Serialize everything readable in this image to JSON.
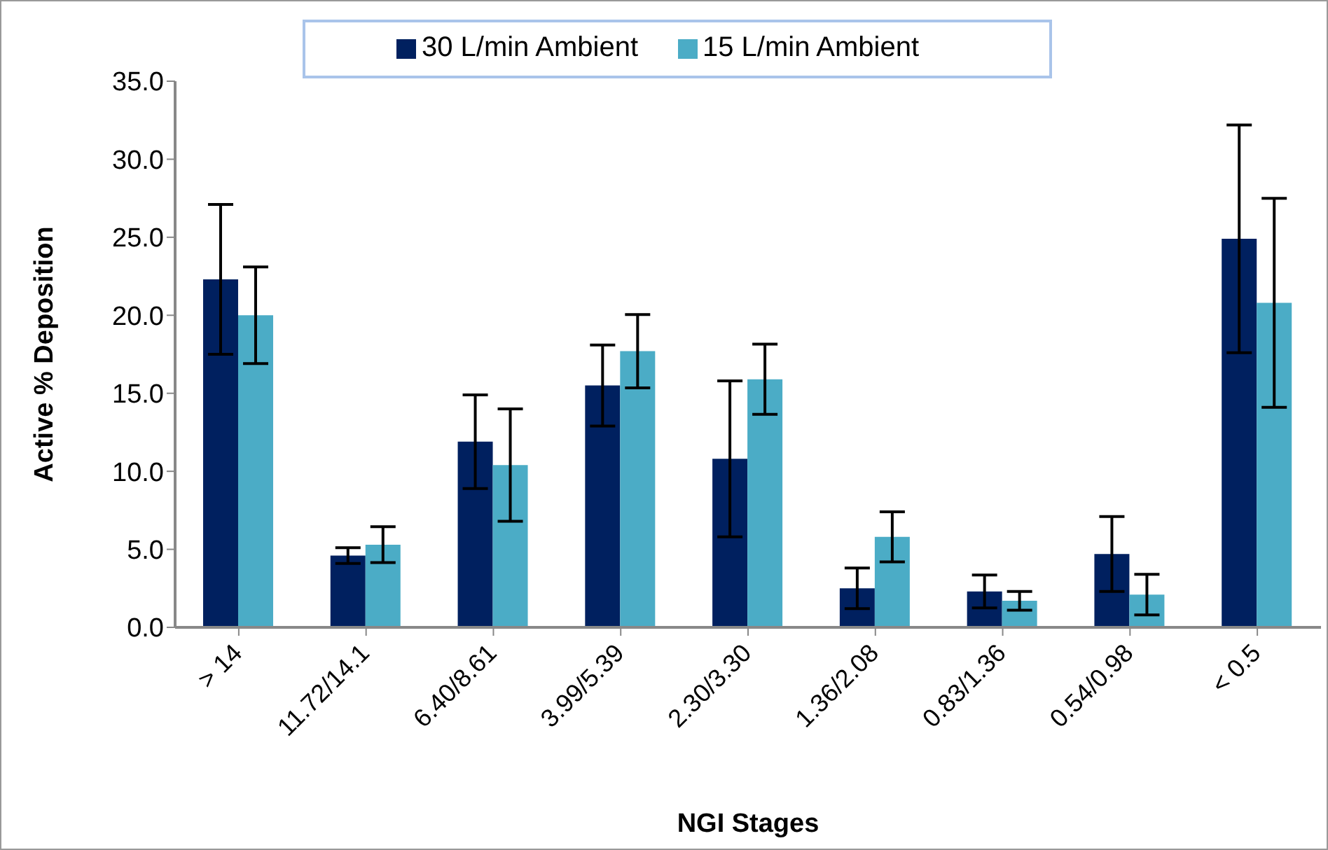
{
  "chart_data": {
    "type": "bar",
    "xlabel": "NGI Stages",
    "ylabel": "Active % Deposition",
    "categories": [
      "> 14",
      "11.72/14.1",
      "6.40/8.61",
      "3.99/5.39",
      "2.30/3.30",
      "1.36/2.08",
      "0.83/1.36",
      "0.54/0.98",
      "< 0.5"
    ],
    "series": [
      {
        "name": "30 L/min Ambient",
        "color": "#00205f",
        "values": [
          22.3,
          4.6,
          11.9,
          15.5,
          10.8,
          2.5,
          2.3,
          4.7,
          24.9
        ],
        "errors": [
          4.8,
          0.5,
          3.0,
          2.6,
          5.0,
          1.3,
          1.05,
          2.4,
          7.3
        ]
      },
      {
        "name": "15 L/min Ambient",
        "color": "#4bacc6",
        "values": [
          20.0,
          5.3,
          10.4,
          17.7,
          15.9,
          5.8,
          1.7,
          2.1,
          20.8
        ],
        "errors": [
          3.1,
          1.15,
          3.6,
          2.35,
          2.25,
          1.6,
          0.6,
          1.3,
          6.7
        ]
      }
    ],
    "ylim": [
      0,
      35
    ],
    "yticks": [
      {
        "value": 0,
        "label": "0.0"
      },
      {
        "value": 5,
        "label": "5.0"
      },
      {
        "value": 10,
        "label": "10.0"
      },
      {
        "value": 15,
        "label": "15.0"
      },
      {
        "value": 20,
        "label": "20.0"
      },
      {
        "value": 25,
        "label": "25.0"
      },
      {
        "value": 30,
        "label": "30.0"
      },
      {
        "value": 35,
        "label": "35.0"
      }
    ],
    "grid": false,
    "legend": "top"
  }
}
